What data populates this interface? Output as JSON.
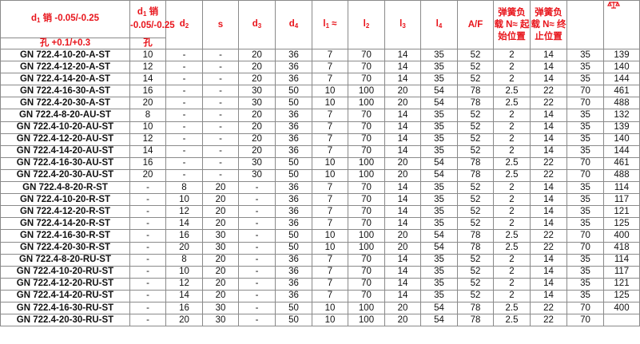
{
  "header": {
    "pin_tol": {
      "sym": "d",
      "sub": "1",
      "text": " 销 -0.05/-0.25"
    },
    "hole_tol": "孔 +0.1/+0.3",
    "d1_pin": {
      "sym": "d",
      "sub": "1",
      "text": " 销 -0.05/-0.25"
    },
    "d1_hole": "孔",
    "d2": {
      "sym": "d",
      "sub": "2"
    },
    "s": "s",
    "d3": {
      "sym": "d",
      "sub": "3"
    },
    "d4": {
      "sym": "d",
      "sub": "4"
    },
    "l1": {
      "sym": "l",
      "sub": "1",
      "text": " ≈"
    },
    "l2": {
      "sym": "l",
      "sub": "2"
    },
    "l3": {
      "sym": "l",
      "sub": "3"
    },
    "l4": {
      "sym": "l",
      "sub": "4"
    },
    "af": "A/F",
    "spring_start": "弹簧负载 N≈ 起始位置",
    "spring_end": "弹簧负载 N≈ 终止位置",
    "extra": "",
    "weight_icon": "scale-icon"
  },
  "colors": {
    "header_text": "#e8141b",
    "border": "#8a8a8a"
  },
  "rows": [
    [
      "GN 722.4-10-20-A-ST",
      "10",
      "-",
      "-",
      "20",
      "36",
      "7",
      "70",
      "14",
      "35",
      "52",
      "2",
      "14",
      "35",
      "139"
    ],
    [
      "GN 722.4-12-20-A-ST",
      "12",
      "-",
      "-",
      "20",
      "36",
      "7",
      "70",
      "14",
      "35",
      "52",
      "2",
      "14",
      "35",
      "140"
    ],
    [
      "GN 722.4-14-20-A-ST",
      "14",
      "-",
      "-",
      "20",
      "36",
      "7",
      "70",
      "14",
      "35",
      "52",
      "2",
      "14",
      "35",
      "144"
    ],
    [
      "GN 722.4-16-30-A-ST",
      "16",
      "-",
      "-",
      "30",
      "50",
      "10",
      "100",
      "20",
      "54",
      "78",
      "2.5",
      "22",
      "70",
      "461"
    ],
    [
      "GN 722.4-20-30-A-ST",
      "20",
      "-",
      "-",
      "30",
      "50",
      "10",
      "100",
      "20",
      "54",
      "78",
      "2.5",
      "22",
      "70",
      "488"
    ],
    [
      "GN 722.4-8-20-AU-ST",
      "8",
      "-",
      "-",
      "20",
      "36",
      "7",
      "70",
      "14",
      "35",
      "52",
      "2",
      "14",
      "35",
      "132"
    ],
    [
      "GN 722.4-10-20-AU-ST",
      "10",
      "-",
      "-",
      "20",
      "36",
      "7",
      "70",
      "14",
      "35",
      "52",
      "2",
      "14",
      "35",
      "139"
    ],
    [
      "GN 722.4-12-20-AU-ST",
      "12",
      "-",
      "-",
      "20",
      "36",
      "7",
      "70",
      "14",
      "35",
      "52",
      "2",
      "14",
      "35",
      "140"
    ],
    [
      "GN 722.4-14-20-AU-ST",
      "14",
      "-",
      "-",
      "20",
      "36",
      "7",
      "70",
      "14",
      "35",
      "52",
      "2",
      "14",
      "35",
      "144"
    ],
    [
      "GN 722.4-16-30-AU-ST",
      "16",
      "-",
      "-",
      "30",
      "50",
      "10",
      "100",
      "20",
      "54",
      "78",
      "2.5",
      "22",
      "70",
      "461"
    ],
    [
      "GN 722.4-20-30-AU-ST",
      "20",
      "-",
      "-",
      "30",
      "50",
      "10",
      "100",
      "20",
      "54",
      "78",
      "2.5",
      "22",
      "70",
      "488"
    ],
    [
      "GN 722.4-8-20-R-ST",
      "-",
      "8",
      "20",
      "-",
      "36",
      "7",
      "70",
      "14",
      "35",
      "52",
      "2",
      "14",
      "35",
      "114"
    ],
    [
      "GN 722.4-10-20-R-ST",
      "-",
      "10",
      "20",
      "-",
      "36",
      "7",
      "70",
      "14",
      "35",
      "52",
      "2",
      "14",
      "35",
      "117"
    ],
    [
      "GN 722.4-12-20-R-ST",
      "-",
      "12",
      "20",
      "-",
      "36",
      "7",
      "70",
      "14",
      "35",
      "52",
      "2",
      "14",
      "35",
      "121"
    ],
    [
      "GN 722.4-14-20-R-ST",
      "-",
      "14",
      "20",
      "-",
      "36",
      "7",
      "70",
      "14",
      "35",
      "52",
      "2",
      "14",
      "35",
      "125"
    ],
    [
      "GN 722.4-16-30-R-ST",
      "-",
      "16",
      "30",
      "-",
      "50",
      "10",
      "100",
      "20",
      "54",
      "78",
      "2.5",
      "22",
      "70",
      "400"
    ],
    [
      "GN 722.4-20-30-R-ST",
      "-",
      "20",
      "30",
      "-",
      "50",
      "10",
      "100",
      "20",
      "54",
      "78",
      "2.5",
      "22",
      "70",
      "418"
    ],
    [
      "GN 722.4-8-20-RU-ST",
      "-",
      "8",
      "20",
      "-",
      "36",
      "7",
      "70",
      "14",
      "35",
      "52",
      "2",
      "14",
      "35",
      "114"
    ],
    [
      "GN 722.4-10-20-RU-ST",
      "-",
      "10",
      "20",
      "-",
      "36",
      "7",
      "70",
      "14",
      "35",
      "52",
      "2",
      "14",
      "35",
      "117"
    ],
    [
      "GN 722.4-12-20-RU-ST",
      "-",
      "12",
      "20",
      "-",
      "36",
      "7",
      "70",
      "14",
      "35",
      "52",
      "2",
      "14",
      "35",
      "121"
    ],
    [
      "GN 722.4-14-20-RU-ST",
      "-",
      "14",
      "20",
      "-",
      "36",
      "7",
      "70",
      "14",
      "35",
      "52",
      "2",
      "14",
      "35",
      "125"
    ],
    [
      "GN 722.4-16-30-RU-ST",
      "-",
      "16",
      "30",
      "-",
      "50",
      "10",
      "100",
      "20",
      "54",
      "78",
      "2.5",
      "22",
      "70",
      "400"
    ],
    [
      "GN 722.4-20-30-RU-ST",
      "-",
      "20",
      "30",
      "-",
      "50",
      "10",
      "100",
      "20",
      "54",
      "78",
      "2.5",
      "22",
      "70",
      ""
    ]
  ]
}
